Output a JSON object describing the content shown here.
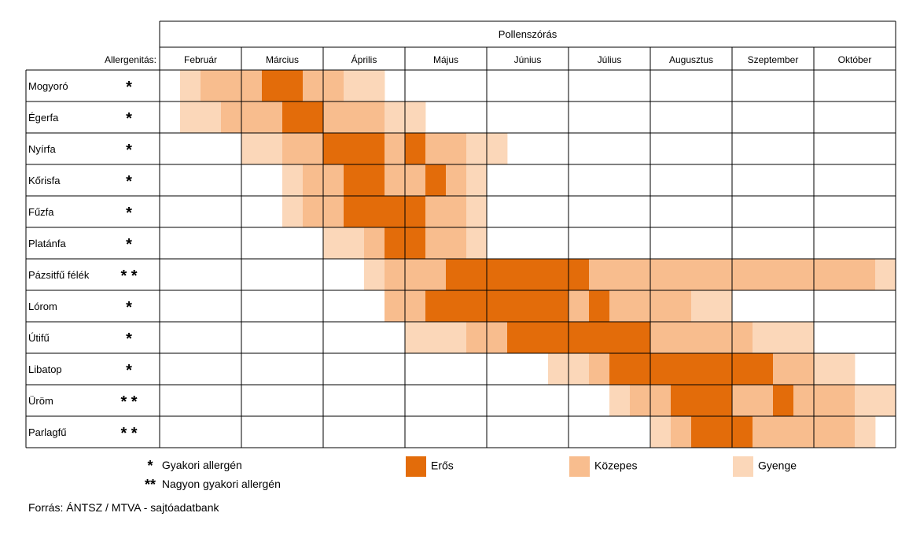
{
  "chart_data": {
    "type": "table",
    "title": "Pollenszórás",
    "row_header": "Allergenitás:",
    "months": [
      "Február",
      "Március",
      "Április",
      "Május",
      "Június",
      "Július",
      "Augusztus",
      "Szeptember",
      "Október"
    ],
    "periods_per_month": 4,
    "intensity_scale": {
      "0": "none",
      "1": "Gyenge",
      "2": "Közepes",
      "3": "Erős"
    },
    "colors": {
      "3": "#E36C0A",
      "2": "#F8BD8E",
      "1": "#FBD7B9",
      "none": "#FFFFFF"
    },
    "rows": [
      {
        "name": "Mogyoró",
        "allergenicity": "*",
        "intensity": [
          0,
          1,
          2,
          2,
          2,
          3,
          3,
          2,
          2,
          1,
          1,
          0,
          0,
          0,
          0,
          0,
          0,
          0,
          0,
          0,
          0,
          0,
          0,
          0,
          0,
          0,
          0,
          0,
          0,
          0,
          0,
          0,
          0,
          0,
          0,
          0
        ]
      },
      {
        "name": "Égerfa",
        "allergenicity": "*",
        "intensity": [
          0,
          1,
          1,
          2,
          2,
          2,
          3,
          3,
          2,
          2,
          2,
          1,
          1,
          0,
          0,
          0,
          0,
          0,
          0,
          0,
          0,
          0,
          0,
          0,
          0,
          0,
          0,
          0,
          0,
          0,
          0,
          0,
          0,
          0,
          0,
          0
        ]
      },
      {
        "name": "Nyírfa",
        "allergenicity": "*",
        "intensity": [
          0,
          0,
          0,
          0,
          1,
          1,
          2,
          2,
          3,
          3,
          3,
          2,
          3,
          2,
          2,
          1,
          1,
          0,
          0,
          0,
          0,
          0,
          0,
          0,
          0,
          0,
          0,
          0,
          0,
          0,
          0,
          0,
          0,
          0,
          0,
          0
        ]
      },
      {
        "name": "Kőrisfa",
        "allergenicity": "*",
        "intensity": [
          0,
          0,
          0,
          0,
          0,
          0,
          1,
          2,
          2,
          3,
          3,
          2,
          2,
          3,
          2,
          1,
          0,
          0,
          0,
          0,
          0,
          0,
          0,
          0,
          0,
          0,
          0,
          0,
          0,
          0,
          0,
          0,
          0,
          0,
          0,
          0
        ]
      },
      {
        "name": "Fűzfa",
        "allergenicity": "*",
        "intensity": [
          0,
          0,
          0,
          0,
          0,
          0,
          1,
          2,
          2,
          3,
          3,
          3,
          3,
          2,
          2,
          1,
          0,
          0,
          0,
          0,
          0,
          0,
          0,
          0,
          0,
          0,
          0,
          0,
          0,
          0,
          0,
          0,
          0,
          0,
          0,
          0
        ]
      },
      {
        "name": "Platánfa",
        "allergenicity": "*",
        "intensity": [
          0,
          0,
          0,
          0,
          0,
          0,
          0,
          0,
          1,
          1,
          2,
          3,
          3,
          2,
          2,
          1,
          0,
          0,
          0,
          0,
          0,
          0,
          0,
          0,
          0,
          0,
          0,
          0,
          0,
          0,
          0,
          0,
          0,
          0,
          0,
          0
        ]
      },
      {
        "name": "Pázsitfű félék",
        "allergenicity": "**",
        "intensity": [
          0,
          0,
          0,
          0,
          0,
          0,
          0,
          0,
          0,
          0,
          1,
          2,
          2,
          2,
          3,
          3,
          3,
          3,
          3,
          3,
          3,
          2,
          2,
          2,
          2,
          2,
          2,
          2,
          2,
          2,
          2,
          2,
          2,
          2,
          2,
          1
        ]
      },
      {
        "name": "Lórom",
        "allergenicity": "*",
        "intensity": [
          0,
          0,
          0,
          0,
          0,
          0,
          0,
          0,
          0,
          0,
          0,
          2,
          2,
          3,
          3,
          3,
          3,
          3,
          3,
          3,
          2,
          3,
          2,
          2,
          2,
          2,
          1,
          1,
          0,
          0,
          0,
          0,
          0,
          0,
          0,
          0
        ]
      },
      {
        "name": "Útifű",
        "allergenicity": "*",
        "intensity": [
          0,
          0,
          0,
          0,
          0,
          0,
          0,
          0,
          0,
          0,
          0,
          0,
          1,
          1,
          1,
          2,
          2,
          3,
          3,
          3,
          3,
          3,
          3,
          3,
          2,
          2,
          2,
          2,
          2,
          1,
          1,
          1,
          0,
          0,
          0,
          0
        ]
      },
      {
        "name": "Libatop",
        "allergenicity": "*",
        "intensity": [
          0,
          0,
          0,
          0,
          0,
          0,
          0,
          0,
          0,
          0,
          0,
          0,
          0,
          0,
          0,
          0,
          0,
          0,
          0,
          1,
          1,
          2,
          3,
          3,
          3,
          3,
          3,
          3,
          3,
          3,
          2,
          2,
          1,
          1,
          0,
          0
        ]
      },
      {
        "name": "Üröm",
        "allergenicity": "**",
        "intensity": [
          0,
          0,
          0,
          0,
          0,
          0,
          0,
          0,
          0,
          0,
          0,
          0,
          0,
          0,
          0,
          0,
          0,
          0,
          0,
          0,
          0,
          0,
          1,
          2,
          2,
          3,
          3,
          3,
          2,
          2,
          3,
          2,
          2,
          2,
          1,
          1
        ]
      },
      {
        "name": "Parlagfű",
        "allergenicity": "**",
        "intensity": [
          0,
          0,
          0,
          0,
          0,
          0,
          0,
          0,
          0,
          0,
          0,
          0,
          0,
          0,
          0,
          0,
          0,
          0,
          0,
          0,
          0,
          0,
          0,
          0,
          1,
          2,
          3,
          3,
          3,
          2,
          2,
          2,
          2,
          2,
          1,
          0
        ]
      }
    ]
  },
  "legend": {
    "symbols": [
      {
        "symbol": "*",
        "label": "Gyakori allergén"
      },
      {
        "symbol": "**",
        "label": "Nagyon gyakori allergén"
      }
    ],
    "intensities": [
      {
        "label": "Erős",
        "color": "#E36C0A"
      },
      {
        "label": "Közepes",
        "color": "#F8BD8E"
      },
      {
        "label": "Gyenge",
        "color": "#FBD7B9"
      }
    ]
  },
  "source": "Forrás: ÁNTSZ / MTVA - sajtóadatbank"
}
